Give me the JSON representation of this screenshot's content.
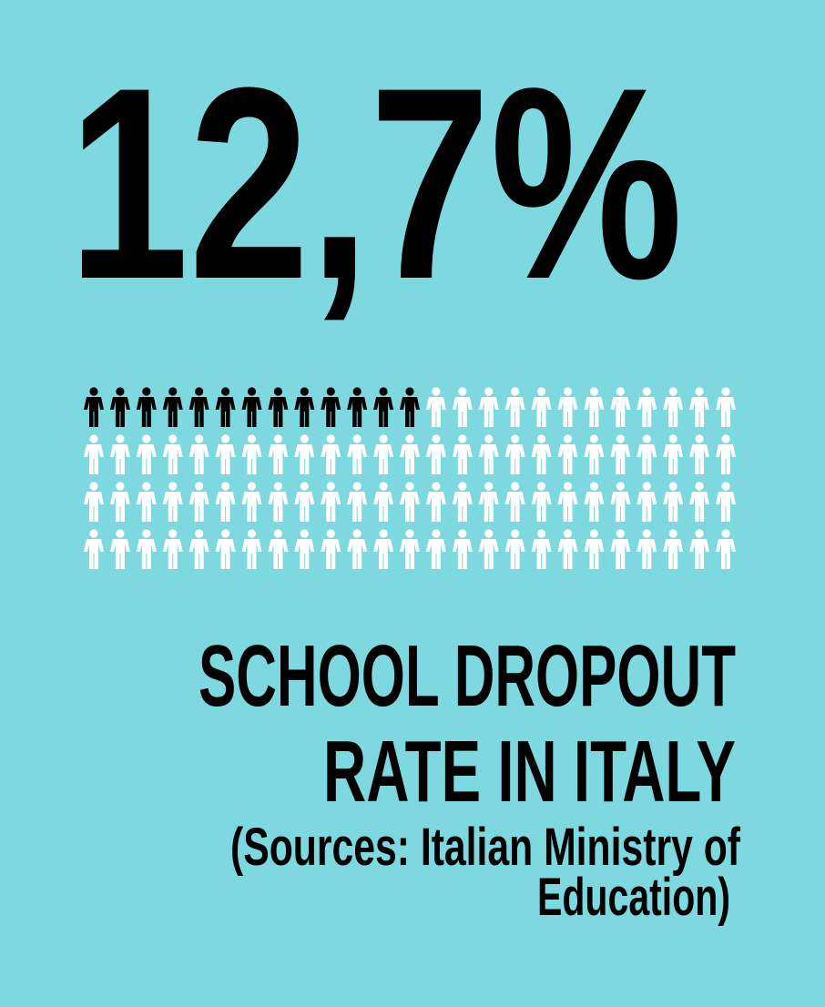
{
  "headline": "12,7%",
  "icons": {
    "total": 100,
    "highlighted": 13,
    "per_row": 25
  },
  "colors": {
    "background": "#7dd8e0",
    "highlighted": "#000000",
    "other": "#ffffff"
  },
  "title": [
    "SCHOOL DROPOUT",
    "RATE IN ITALY"
  ],
  "source": [
    "(Sources: Italian Ministry of",
    "Education)"
  ]
}
